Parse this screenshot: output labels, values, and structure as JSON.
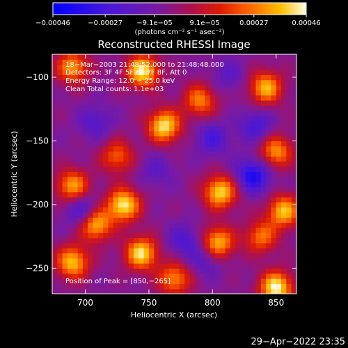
{
  "chart_data": {
    "type": "heatmap",
    "title": "Reconstructed RHESSI Image",
    "xlabel": "Heliocentric X (arcsec)",
    "ylabel": "Heliocentric Y (arcsec)",
    "xlim": [
      674,
      866
    ],
    "ylim": [
      -270,
      -82
    ],
    "xticks": [
      700,
      750,
      800,
      850
    ],
    "xtick_labels": [
      "700",
      "750",
      "800",
      "850"
    ],
    "yticks": [
      -100,
      -150,
      -200,
      -250
    ],
    "ytick_labels": [
      "−100",
      "−150",
      "−200",
      "−250"
    ],
    "colorbar": {
      "range": [
        -0.00046,
        0.00046
      ],
      "tick_values": [
        -0.00046,
        -0.00027,
        -9.1e-05,
        9.1e-05,
        0.00027,
        0.00046
      ],
      "tick_labels": [
        "−0.00046",
        "−0.00027",
        "−9.1e−05",
        "9.1e−05",
        "0.00027",
        "0.00046"
      ],
      "units_line": "(photons cm⁻² s⁻¹ asec⁻²)"
    },
    "annotations": [
      "18−Mar−2003 21:48:52.000 to 21:48:48.000",
      "Detectors: 3F 4F 5F 6F 7F 8F, Att 0",
      "Energy Range: 12.0 − 25.0 keV",
      "Clean     Total counts: 1.1e+03"
    ],
    "peak_label": "Position of Peak = [850,−265]",
    "peak": [
      850,
      -265
    ],
    "grid": false,
    "hot_regions": [
      {
        "x": 745,
        "y": -95,
        "value": 0.00044
      },
      {
        "x": 690,
        "y": -92,
        "value": 0.00032
      },
      {
        "x": 762,
        "y": -138,
        "value": 0.00043
      },
      {
        "x": 790,
        "y": -118,
        "value": 0.00028
      },
      {
        "x": 842,
        "y": -108,
        "value": 0.00036
      },
      {
        "x": 850,
        "y": -158,
        "value": 0.00031
      },
      {
        "x": 730,
        "y": -200,
        "value": 0.00044
      },
      {
        "x": 708,
        "y": -215,
        "value": 0.0004
      },
      {
        "x": 744,
        "y": -238,
        "value": 0.00042
      },
      {
        "x": 690,
        "y": -245,
        "value": 0.00038
      },
      {
        "x": 690,
        "y": -185,
        "value": 0.00033
      },
      {
        "x": 806,
        "y": -190,
        "value": 0.00041
      },
      {
        "x": 804,
        "y": -230,
        "value": 0.00038
      },
      {
        "x": 838,
        "y": -225,
        "value": 0.00026
      },
      {
        "x": 856,
        "y": -205,
        "value": 0.00037
      },
      {
        "x": 850,
        "y": -265,
        "value": 0.00046
      },
      {
        "x": 770,
        "y": -258,
        "value": 0.0003
      },
      {
        "x": 725,
        "y": -162,
        "value": 0.00024
      }
    ],
    "cold_regions": [
      {
        "x": 698,
        "y": -205,
        "value": -0.0003
      },
      {
        "x": 800,
        "y": -148,
        "value": -0.00026
      },
      {
        "x": 834,
        "y": -138,
        "value": -0.00026
      },
      {
        "x": 830,
        "y": -175,
        "value": -0.00026
      },
      {
        "x": 708,
        "y": -135,
        "value": -0.00022
      },
      {
        "x": 778,
        "y": -228,
        "value": -0.00024
      },
      {
        "x": 835,
        "y": -180,
        "value": -0.0002
      },
      {
        "x": 812,
        "y": -98,
        "value": -0.00018
      },
      {
        "x": 795,
        "y": -243,
        "value": -0.00022
      },
      {
        "x": 756,
        "y": -173,
        "value": -0.00018
      }
    ]
  },
  "footer": {
    "timestamp": "29−Apr−2022 23:35"
  }
}
